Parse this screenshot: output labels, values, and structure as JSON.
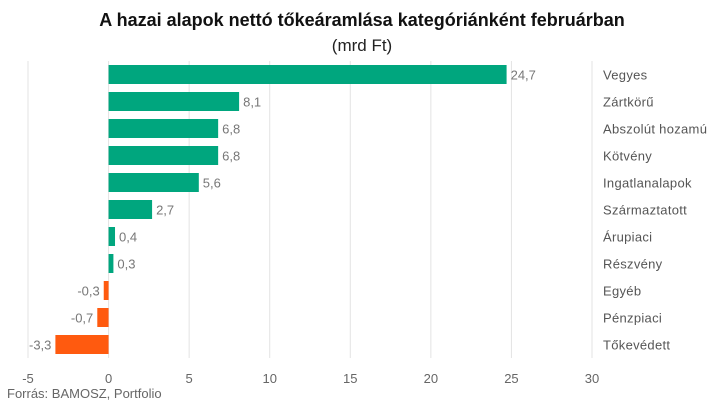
{
  "chart_data": {
    "type": "bar",
    "orientation": "horizontal",
    "title": "A hazai alapok nettó tőkeáramlása kategóriánként februárban",
    "subtitle": "(mrd Ft)",
    "categories": [
      "Vegyes",
      "Zártkörű",
      "Abszolút hozamú",
      "Kötvény",
      "Ingatlanalapok",
      "Származtatott",
      "Árupiaci",
      "Részvény",
      "Egyéb",
      "Pénzpiaci",
      "Tőkevédett"
    ],
    "values": [
      24.7,
      8.1,
      6.8,
      6.8,
      5.6,
      2.7,
      0.4,
      0.3,
      -0.3,
      -0.7,
      -3.3
    ],
    "value_labels": [
      "24,7",
      "8,1",
      "6,8",
      "6,8",
      "5,6",
      "2,7",
      "0,4",
      "0,3",
      "-0,3",
      "-0,7",
      "-3,3"
    ],
    "xlim": [
      -5,
      30
    ],
    "xticks": [
      -5,
      0,
      5,
      10,
      15,
      20,
      25,
      30
    ],
    "xtick_labels": [
      "-5",
      "0",
      "5",
      "10",
      "15",
      "20",
      "25",
      "30"
    ],
    "colors": {
      "positive": "#00a67e",
      "negative": "#ff5a0f"
    },
    "grid": true,
    "category_labels_position": "right"
  },
  "source": "Forrás: BAMOSZ, Portfolio"
}
